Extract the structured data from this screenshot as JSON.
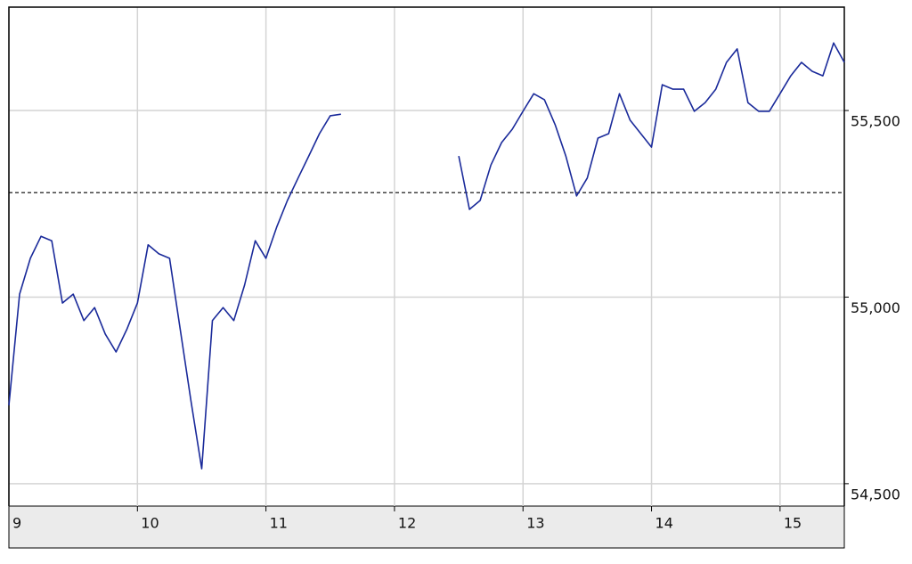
{
  "chart_data": {
    "type": "line",
    "x": [
      9,
      9.0833,
      9.1667,
      9.25,
      9.3333,
      9.4167,
      9.5,
      9.5833,
      9.6667,
      9.75,
      9.8333,
      9.9167,
      10,
      10.0833,
      10.1667,
      10.25,
      10.3333,
      10.4167,
      10.5,
      10.5833,
      10.6667,
      10.75,
      10.8333,
      10.9167,
      11,
      11.0833,
      11.1667,
      11.25,
      11.3333,
      11.4167,
      11.5,
      11.5833,
      12,
      12.5,
      12.5833,
      12.6667,
      12.75,
      12.8333,
      12.9167,
      13,
      13.0833,
      13.1667,
      13.25,
      13.3333,
      13.4167,
      13.5,
      13.5833,
      13.6667,
      13.75,
      13.8333,
      13.9167,
      14,
      14.0833,
      14.1667,
      14.25,
      14.3333,
      14.4167,
      14.5,
      14.5833,
      14.6667,
      14.75,
      14.8333,
      14.9167,
      15,
      15.0833,
      15.1667,
      15.25,
      15.3333,
      15.4167,
      15.5
    ],
    "series": [
      {
        "color": "#1a2a9a",
        "values": [
          54710,
          55008,
          55104,
          55163,
          55151,
          54984,
          55008,
          54937,
          54972,
          54901,
          54853,
          54913,
          54984,
          55140,
          55116,
          55104,
          54913,
          54722,
          54540,
          54937,
          54972,
          54937,
          55032,
          55151,
          55104,
          55187,
          55259,
          55319,
          55378,
          55438,
          55486,
          55490,
          null,
          55378,
          55235,
          55259,
          55354,
          55414,
          55450,
          55498,
          55545,
          55529,
          55462,
          55378,
          55271,
          55319,
          55426,
          55438,
          55545,
          55474,
          55438,
          55402,
          55569,
          55557,
          55557,
          55498,
          55521,
          55557,
          55629,
          55665,
          55521,
          55498,
          55498,
          55545,
          55593,
          55629,
          55605,
          55593,
          55681,
          55629
        ]
      }
    ],
    "reference_line": 55280,
    "xlim": [
      9,
      15.5
    ],
    "xticks": [
      9,
      10,
      11,
      12,
      13,
      14,
      15
    ],
    "ylim": [
      54440,
      55777
    ],
    "yticks": [
      {
        "value": 54500,
        "label": "54,500"
      },
      {
        "value": 55000,
        "label": "55,000"
      },
      {
        "value": 55500,
        "label": "55,500"
      }
    ],
    "grid": true
  }
}
